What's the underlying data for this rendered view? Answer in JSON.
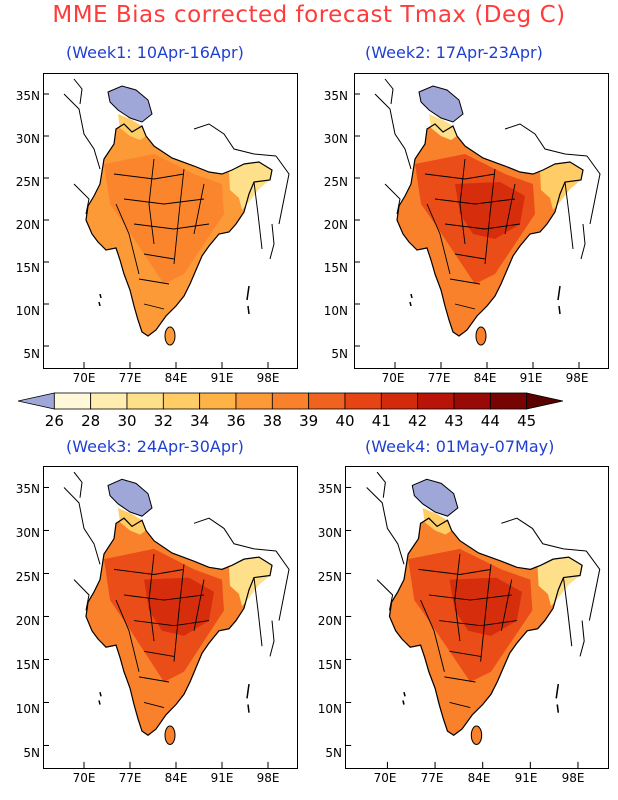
{
  "title": "MME Bias corrected forecast Tmax (Deg C)",
  "panels": [
    {
      "title": "(Week1: 10Apr-16Apr)"
    },
    {
      "title": "(Week2: 17Apr-23Apr)"
    },
    {
      "title": "(Week3: 24Apr-30Apr)"
    },
    {
      "title": "(Week4: 01May-07May)"
    }
  ],
  "y_ticks": [
    "35N",
    "30N",
    "25N",
    "20N",
    "15N",
    "10N",
    "5N"
  ],
  "x_ticks": [
    "70E",
    "77E",
    "84E",
    "91E",
    "98E"
  ],
  "colorbar": {
    "labels": [
      "26",
      "28",
      "30",
      "32",
      "34",
      "36",
      "38",
      "39",
      "40",
      "41",
      "42",
      "43",
      "44",
      "45"
    ],
    "colors": [
      "#9fa6d8",
      "#fff9d9",
      "#ffeeb0",
      "#ffe08a",
      "#ffcc66",
      "#ffb347",
      "#fd9a38",
      "#fa812c",
      "#f0621f",
      "#e64415",
      "#d42a0c",
      "#b81407",
      "#990905",
      "#780303",
      "#5a0000"
    ]
  },
  "map_colors": {
    "panel1": {
      "base": "#fd9a38",
      "north": "#ffcc66",
      "east": "#ffe08a",
      "kashmir": "#9fa6d8",
      "hot": "#fa812c"
    },
    "panel2": {
      "base": "#fa812c",
      "north": "#ffe08a",
      "east": "#ffcc66",
      "kashmir": "#9fa6d8",
      "hot": "#e64415",
      "core": "#d42a0c"
    },
    "panel3": {
      "base": "#fa812c",
      "north": "#ffcc66",
      "east": "#ffe08a",
      "kashmir": "#9fa6d8",
      "hot": "#e64415",
      "core": "#d42a0c"
    },
    "panel4": {
      "base": "#fa812c",
      "north": "#ffcc66",
      "east": "#ffe08a",
      "kashmir": "#9fa6d8",
      "hot": "#e64415",
      "core": "#d42a0c"
    }
  }
}
